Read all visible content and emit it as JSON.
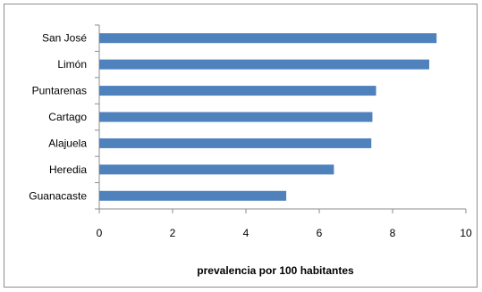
{
  "chart_data": {
    "type": "bar",
    "orientation": "horizontal",
    "categories": [
      "San José",
      "Limón",
      "Puntarenas",
      "Cartago",
      "Alajuela",
      "Heredia",
      "Guanacaste"
    ],
    "values": [
      9.2,
      9.0,
      7.55,
      7.45,
      7.42,
      6.4,
      5.1
    ],
    "xlabel": "prevalencia por 100 habitantes",
    "xlim": [
      0,
      10
    ],
    "xticks": [
      0,
      2,
      4,
      6,
      8,
      10
    ],
    "grid": false,
    "bar_color": "#4F81BD"
  }
}
